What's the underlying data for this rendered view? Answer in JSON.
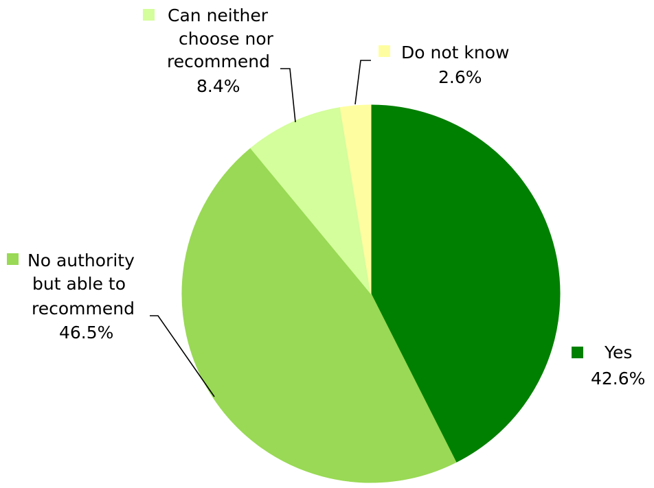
{
  "chart_data": {
    "type": "pie",
    "start_angle_deg": 0,
    "direction": "clockwise",
    "slices": [
      {
        "name": "Yes",
        "label_lines": [
          "Yes"
        ],
        "value": 42.6,
        "value_label": "42.6%",
        "color": "#008000"
      },
      {
        "name": "No authority but able to recommend",
        "label_lines": [
          "No authority",
          "but able to",
          "recommend"
        ],
        "value": 46.5,
        "value_label": "46.5%",
        "color": "#99d955"
      },
      {
        "name": "Can neither choose nor recommend",
        "label_lines": [
          "Can neither",
          "choose nor",
          "recommend"
        ],
        "value": 8.4,
        "value_label": "8.4%",
        "color": "#d4fd9c"
      },
      {
        "name": "Do not know",
        "label_lines": [
          "Do not know"
        ],
        "value": 2.6,
        "value_label": "2.6%",
        "color": "#fefea0"
      }
    ],
    "legend": "none",
    "data_labels": "outside with leader lines"
  }
}
